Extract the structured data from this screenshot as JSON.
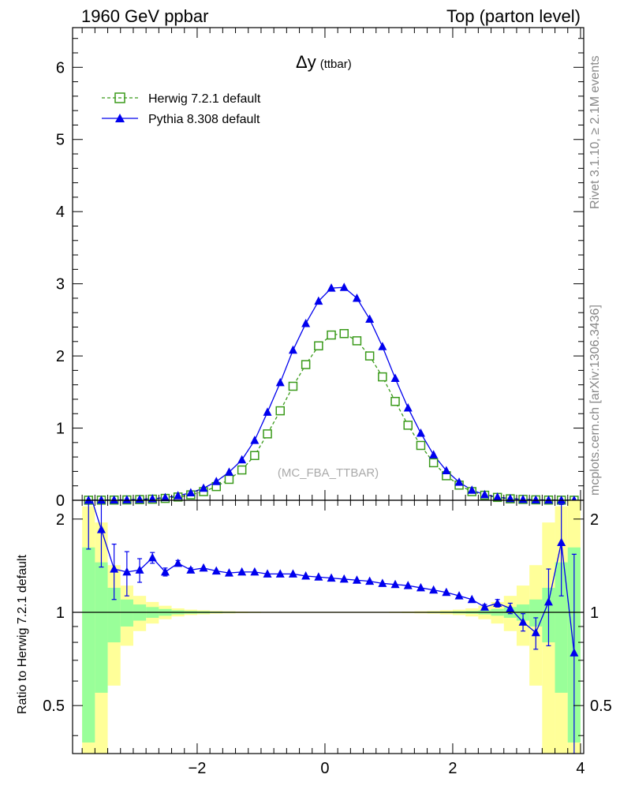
{
  "header": {
    "left": "1960 GeV ppbar",
    "right": "Top (parton level)"
  },
  "side_text": {
    "top": "Rivet 3.1.10, ≥ 2.1M events",
    "bottom": "mcplots.cern.ch [arXiv:1306.3436]"
  },
  "chart_data": {
    "type": "line",
    "title_main": "Δy",
    "title_sub": "(ttbar)",
    "watermark": "(MC_FBA_TTBAR)",
    "xlabel": "",
    "ylabel": "",
    "ratio_ylabel": "Ratio to Herwig 7.2.1 default",
    "xlim": [
      -3.95,
      4.05
    ],
    "ylim": [
      0,
      6.55
    ],
    "ratio_ylim": [
      0.35,
      2.3
    ],
    "x_ticks": [
      -2,
      0,
      2,
      4
    ],
    "y_ticks": [
      0,
      1,
      2,
      3,
      4,
      5,
      6
    ],
    "ratio_y_ticks": [
      0.5,
      1,
      2
    ],
    "x": [
      -3.7,
      -3.5,
      -3.3,
      -3.1,
      -2.9,
      -2.7,
      -2.5,
      -2.3,
      -2.1,
      -1.9,
      -1.7,
      -1.5,
      -1.3,
      -1.1,
      -0.9,
      -0.7,
      -0.5,
      -0.3,
      -0.1,
      0.1,
      0.3,
      0.5,
      0.7,
      0.9,
      1.1,
      1.3,
      1.5,
      1.7,
      1.9,
      2.1,
      2.3,
      2.5,
      2.7,
      2.9,
      3.1,
      3.3,
      3.5,
      3.7,
      3.9
    ],
    "series": [
      {
        "name": "Herwig 7.2.1 default",
        "color": "#3a9a1a",
        "marker": "open-square",
        "line": "dashed",
        "values": [
          0.001,
          0.002,
          0.003,
          0.005,
          0.009,
          0.015,
          0.026,
          0.045,
          0.075,
          0.12,
          0.19,
          0.29,
          0.42,
          0.62,
          0.92,
          1.24,
          1.58,
          1.88,
          2.14,
          2.29,
          2.31,
          2.21,
          2.0,
          1.71,
          1.37,
          1.04,
          0.76,
          0.52,
          0.34,
          0.21,
          0.12,
          0.07,
          0.04,
          0.02,
          0.012,
          0.006,
          0.003,
          0.0015,
          0.0008
        ]
      },
      {
        "name": "Pythia 8.308 default",
        "color": "#0000ee",
        "marker": "filled-triangle",
        "line": "solid",
        "values": [
          0.001,
          0.003,
          0.004,
          0.007,
          0.012,
          0.021,
          0.037,
          0.063,
          0.104,
          0.167,
          0.26,
          0.39,
          0.56,
          0.83,
          1.22,
          1.63,
          2.08,
          2.45,
          2.76,
          2.94,
          2.95,
          2.8,
          2.51,
          2.13,
          1.69,
          1.28,
          0.93,
          0.63,
          0.41,
          0.25,
          0.14,
          0.078,
          0.044,
          0.023,
          0.012,
          0.006,
          0.003,
          0.0015,
          0.0008
        ],
        "ratio": [
          2.5,
          1.85,
          1.38,
          1.35,
          1.37,
          1.5,
          1.35,
          1.44,
          1.37,
          1.39,
          1.36,
          1.34,
          1.35,
          1.35,
          1.33,
          1.33,
          1.33,
          1.31,
          1.3,
          1.29,
          1.28,
          1.27,
          1.26,
          1.24,
          1.23,
          1.22,
          1.2,
          1.18,
          1.16,
          1.13,
          1.1,
          1.04,
          1.07,
          1.03,
          0.93,
          0.86,
          1.08,
          1.68,
          0.74
        ],
        "ratio_err": [
          0.9,
          0.45,
          0.28,
          0.22,
          0.12,
          0.06,
          0.04,
          0.03,
          0.02,
          0.015,
          0.01,
          0.01,
          0.01,
          0.01,
          0.01,
          0.01,
          0.01,
          0.01,
          0.01,
          0.01,
          0.01,
          0.01,
          0.01,
          0.01,
          0.01,
          0.01,
          0.01,
          0.01,
          0.01,
          0.01,
          0.015,
          0.02,
          0.03,
          0.04,
          0.06,
          0.1,
          0.3,
          0.55,
          0.8
        ]
      }
    ],
    "ratio_band_green": [
      1.62,
      1.45,
      1.2,
      1.1,
      1.06,
      1.04,
      1.025,
      1.015,
      1.01,
      1.008,
      1.005,
      1.004,
      1.003,
      1.003,
      1.002,
      1.002,
      1.002,
      1.002,
      1.002,
      1.002,
      1.002,
      1.002,
      1.002,
      1.002,
      1.002,
      1.003,
      1.003,
      1.004,
      1.005,
      1.008,
      1.01,
      1.015,
      1.025,
      1.04,
      1.06,
      1.1,
      1.2,
      1.45,
      1.62
    ],
    "ratio_band_yellow": [
      2.2,
      1.95,
      1.42,
      1.22,
      1.13,
      1.08,
      1.05,
      1.03,
      1.02,
      1.015,
      1.01,
      1.008,
      1.006,
      1.005,
      1.004,
      1.004,
      1.004,
      1.004,
      1.004,
      1.004,
      1.004,
      1.004,
      1.004,
      1.004,
      1.005,
      1.006,
      1.008,
      1.01,
      1.015,
      1.02,
      1.03,
      1.05,
      1.08,
      1.13,
      1.22,
      1.42,
      1.95,
      2.2,
      2.3
    ]
  }
}
